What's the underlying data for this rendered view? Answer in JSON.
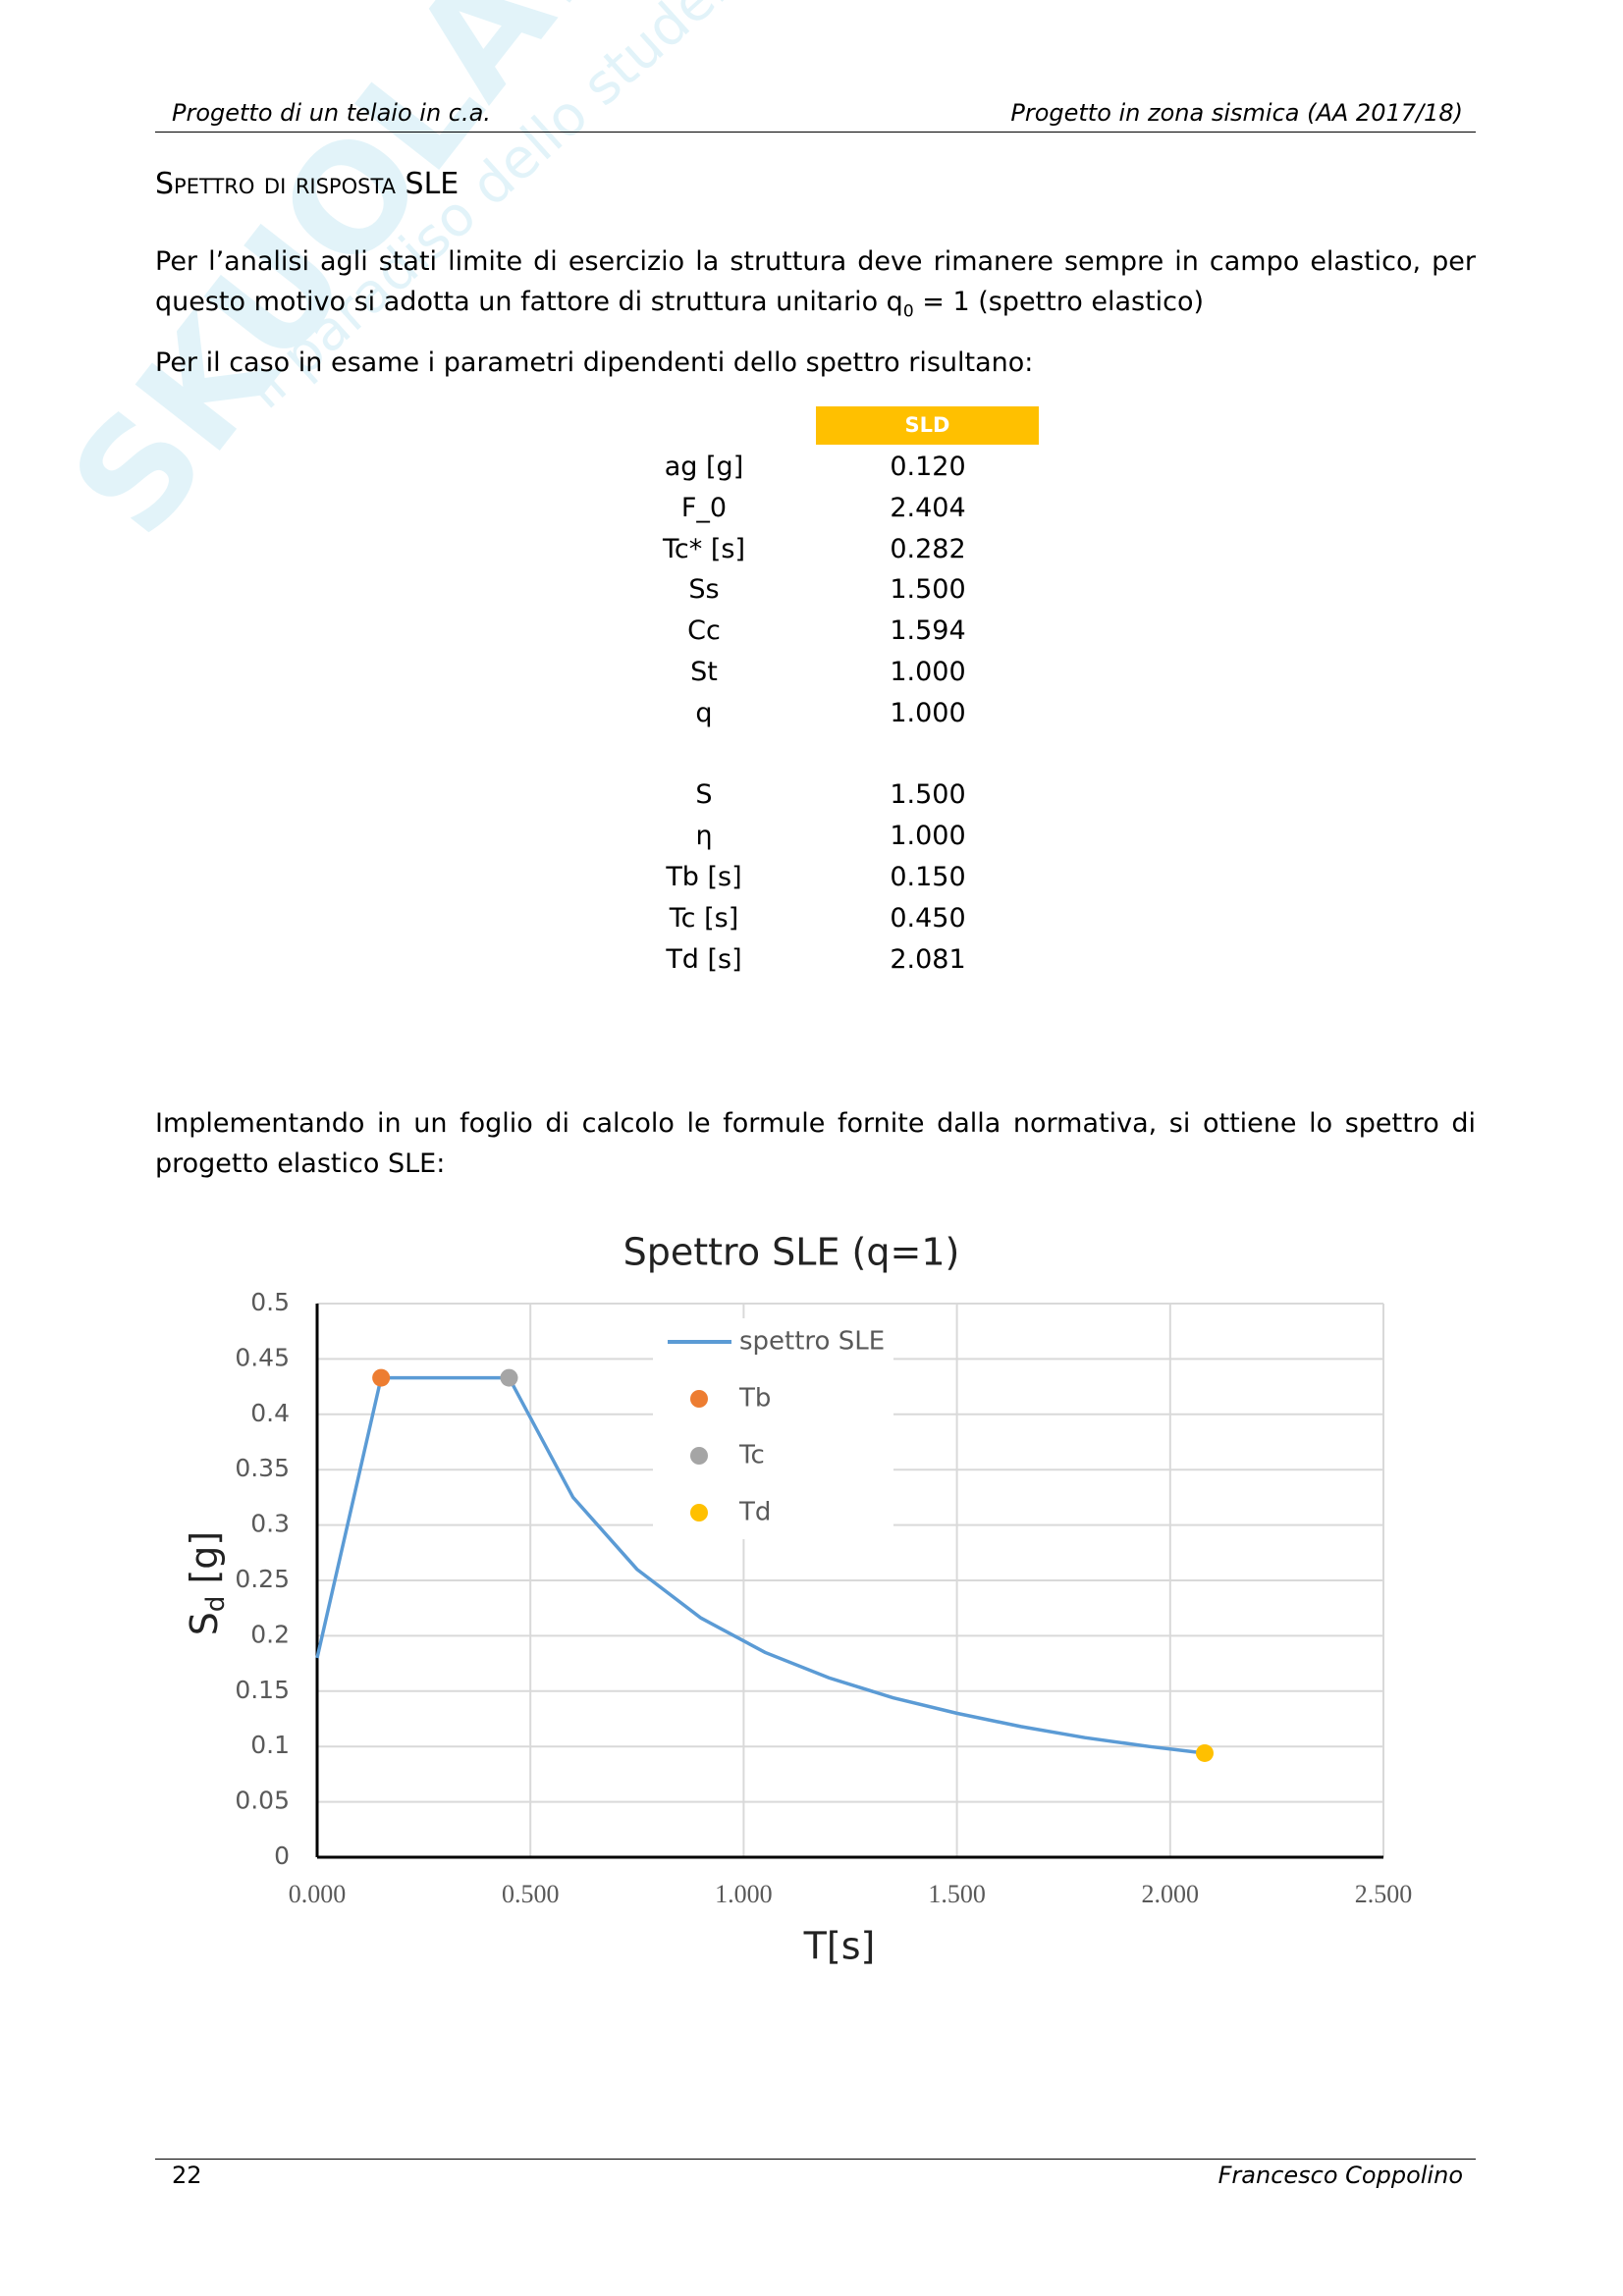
{
  "header": {
    "left": "Progetto di un telaio in c.a.",
    "right": "Progetto in zona sismica (AA 2017/18)"
  },
  "watermark": {
    "brand": "SKUOLA.net",
    "tagline": "il paradiso dello studente"
  },
  "section_title": "Spettro di risposta SLE",
  "paragraphs": [
    {
      "before": "Per l’analisi agli stati limite di esercizio la struttura deve rimanere sempre in campo elastico, per questo motivo si adotta un fattore di struttura unitario q",
      "sub": "0",
      "after": " = 1 (spettro elastico)"
    },
    {
      "text": "Per il caso in esame i parametri dipendenti dello spettro risultano:"
    },
    {
      "text": "Implementando in un foglio di calcolo le formule fornite dalla normativa, si ottiene lo spettro di progetto elastico SLE:"
    }
  ],
  "table": {
    "header": "SLD",
    "groups": [
      [
        [
          "ag [g]",
          "0.120"
        ],
        [
          "F_0",
          "2.404"
        ],
        [
          "Tc* [s]",
          "0.282"
        ],
        [
          "Ss",
          "1.500"
        ],
        [
          "Cc",
          "1.594"
        ],
        [
          "St",
          "1.000"
        ],
        [
          "q",
          "1.000"
        ]
      ],
      [
        [
          "S",
          "1.500"
        ],
        [
          "η",
          "1.000"
        ],
        [
          "Tb [s]",
          "0.150"
        ],
        [
          "Tc [s]",
          "0.450"
        ],
        [
          "Td [s]",
          "2.081"
        ]
      ]
    ]
  },
  "chart_data": {
    "type": "line",
    "title": "Spettro SLE (q=1)",
    "xlabel": "T[s]",
    "ylabel": {
      "main": "S",
      "sub": "d",
      "rest": " [g]"
    },
    "xlim": [
      0,
      2.5
    ],
    "xticks": [
      {
        "value": 0,
        "label": "0.000"
      },
      {
        "value": 0.5,
        "label": "0.500"
      },
      {
        "value": 1,
        "label": "1.000"
      },
      {
        "value": 1.5,
        "label": "1.500"
      },
      {
        "value": 2,
        "label": "2.000"
      },
      {
        "value": 2.5,
        "label": "2.500"
      }
    ],
    "ylim": [
      0,
      0.5
    ],
    "yticks": [
      0,
      0.05,
      0.1,
      0.15,
      0.2,
      0.25,
      0.3,
      0.35,
      0.4,
      0.45,
      0.5
    ],
    "grid": true,
    "series": [
      {
        "name": "spettro SLE",
        "kind": "line",
        "color": "#5b9bd5",
        "x": [
          0,
          0.15,
          0.45,
          0.6,
          0.75,
          0.9,
          1.05,
          1.2,
          1.35,
          1.5,
          1.65,
          1.8,
          1.95,
          2.081
        ],
        "values": [
          0.18,
          0.433,
          0.433,
          0.325,
          0.26,
          0.216,
          0.185,
          0.162,
          0.144,
          0.13,
          0.118,
          0.108,
          0.1,
          0.094
        ]
      },
      {
        "name": "Tb",
        "kind": "scatter",
        "color": "#ed7d31",
        "x": [
          0.15
        ],
        "values": [
          0.433
        ]
      },
      {
        "name": "Tc",
        "kind": "scatter",
        "color": "#a5a5a5",
        "x": [
          0.45
        ],
        "values": [
          0.433
        ]
      },
      {
        "name": "Td",
        "kind": "scatter",
        "color": "#ffc000",
        "x": [
          2.081
        ],
        "values": [
          0.094
        ]
      }
    ]
  },
  "footer": {
    "page": "22",
    "author": "Francesco Coppolino"
  }
}
